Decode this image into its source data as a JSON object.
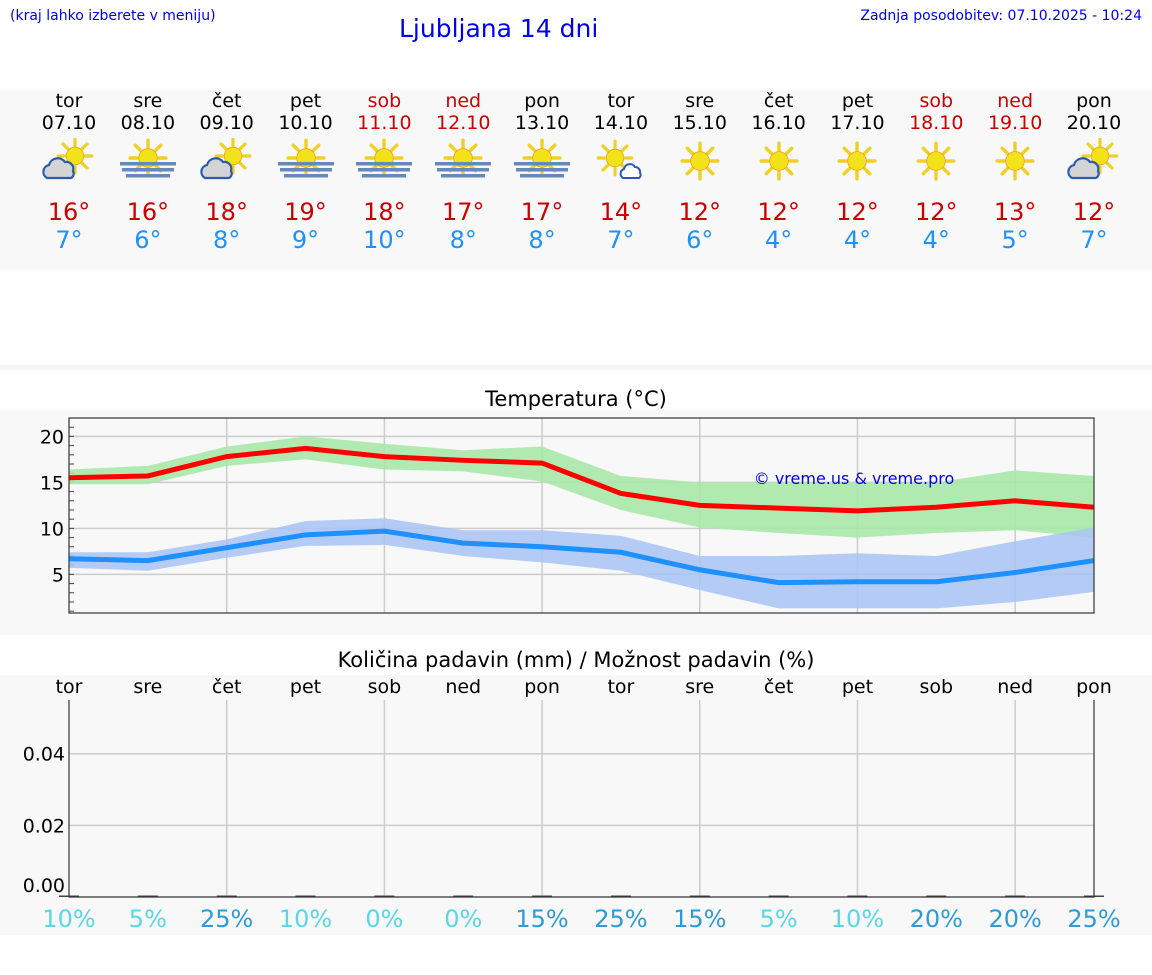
{
  "header": {
    "hint": "(kraj lahko izberete v meniju)",
    "title": "Ljubljana 14 dni",
    "updated": "Zadnja posodobitev: 07.10.2025 - 10:24"
  },
  "days": [
    {
      "name": "tor",
      "date": "07.10",
      "icon": "partly-cloudy",
      "max": "16°",
      "min": "7°",
      "weekend": false
    },
    {
      "name": "sre",
      "date": "08.10",
      "icon": "sun-fog",
      "max": "16°",
      "min": "6°",
      "weekend": false
    },
    {
      "name": "čet",
      "date": "09.10",
      "icon": "partly-cloudy",
      "max": "18°",
      "min": "8°",
      "weekend": false
    },
    {
      "name": "pet",
      "date": "10.10",
      "icon": "sun-fog",
      "max": "19°",
      "min": "9°",
      "weekend": false
    },
    {
      "name": "sob",
      "date": "11.10",
      "icon": "sun-fog",
      "max": "18°",
      "min": "10°",
      "weekend": true
    },
    {
      "name": "ned",
      "date": "12.10",
      "icon": "sun-fog",
      "max": "17°",
      "min": "8°",
      "weekend": true
    },
    {
      "name": "pon",
      "date": "13.10",
      "icon": "sun-fog",
      "max": "17°",
      "min": "8°",
      "weekend": false
    },
    {
      "name": "tor",
      "date": "14.10",
      "icon": "sun-small-cloud",
      "max": "14°",
      "min": "7°",
      "weekend": false
    },
    {
      "name": "sre",
      "date": "15.10",
      "icon": "sun",
      "max": "12°",
      "min": "6°",
      "weekend": false
    },
    {
      "name": "čet",
      "date": "16.10",
      "icon": "sun",
      "max": "12°",
      "min": "4°",
      "weekend": false
    },
    {
      "name": "pet",
      "date": "17.10",
      "icon": "sun",
      "max": "12°",
      "min": "4°",
      "weekend": false
    },
    {
      "name": "sob",
      "date": "18.10",
      "icon": "sun",
      "max": "12°",
      "min": "4°",
      "weekend": true
    },
    {
      "name": "ned",
      "date": "19.10",
      "icon": "sun",
      "max": "13°",
      "min": "5°",
      "weekend": true
    },
    {
      "name": "pon",
      "date": "20.10",
      "icon": "partly-cloudy",
      "max": "12°",
      "min": "7°",
      "weekend": false
    }
  ],
  "colors": {
    "max": "#ff0000",
    "min": "#1e90ff",
    "max_band": "#a8e8a8",
    "min_band": "#a8c4f4",
    "weekend": "#cc0000",
    "prob_low": "#5ad6e6",
    "prob_high": "#2e9ad6"
  },
  "chart_data": [
    {
      "type": "line",
      "title": "Temperatura (°C)",
      "ylim": [
        0.8,
        22
      ],
      "grid": true,
      "yticks": [
        5,
        10,
        15,
        20
      ],
      "watermark": "© vreme.us & vreme.pro",
      "x": [
        "07.10",
        "08.10",
        "09.10",
        "10.10",
        "11.10",
        "12.10",
        "13.10",
        "14.10",
        "15.10",
        "16.10",
        "17.10",
        "18.10",
        "19.10",
        "20.10"
      ],
      "series": [
        {
          "key": "max",
          "values": [
            15.5,
            15.7,
            17.8,
            18.7,
            17.8,
            17.4,
            17.1,
            13.8,
            12.5,
            12.2,
            11.9,
            12.3,
            13.0,
            12.3
          ],
          "band_upper": [
            16.4,
            16.8,
            18.9,
            20.0,
            19.2,
            18.5,
            18.9,
            15.7,
            15.0,
            15.0,
            15.0,
            15.0,
            16.3,
            15.7
          ],
          "band_lower": [
            14.8,
            14.8,
            16.8,
            17.5,
            16.4,
            16.2,
            15.1,
            12.0,
            10.1,
            9.5,
            9.0,
            9.5,
            9.8,
            9.0
          ]
        },
        {
          "key": "min",
          "values": [
            6.7,
            6.5,
            7.9,
            9.3,
            9.7,
            8.4,
            8.0,
            7.4,
            5.5,
            4.1,
            4.2,
            4.2,
            5.2,
            6.5
          ],
          "band_upper": [
            7.4,
            7.4,
            8.8,
            10.8,
            11.1,
            9.8,
            9.8,
            9.2,
            7.0,
            7.0,
            7.3,
            7.0,
            8.6,
            10.1
          ],
          "band_lower": [
            5.7,
            5.4,
            6.8,
            8.1,
            8.2,
            7.0,
            6.3,
            5.4,
            3.3,
            1.3,
            1.3,
            1.3,
            2.0,
            3.1
          ]
        }
      ]
    },
    {
      "type": "bar",
      "title": "Količina padavin (mm) / Možnost padavin (%)",
      "ylim": [
        0,
        0.055
      ],
      "grid": true,
      "yticks": [
        "0.00",
        "0.02",
        "0.04"
      ],
      "categories": [
        "tor",
        "sre",
        "čet",
        "pet",
        "sob",
        "ned",
        "pon",
        "tor",
        "sre",
        "čet",
        "pet",
        "sob",
        "ned",
        "pon"
      ],
      "values": [
        0,
        0,
        0,
        0,
        0,
        0,
        0,
        0,
        0,
        0,
        0,
        0,
        0,
        0
      ],
      "probability": [
        "10%",
        "5%",
        "25%",
        "10%",
        "0%",
        "0%",
        "15%",
        "25%",
        "15%",
        "5%",
        "10%",
        "20%",
        "20%",
        "25%"
      ]
    }
  ]
}
